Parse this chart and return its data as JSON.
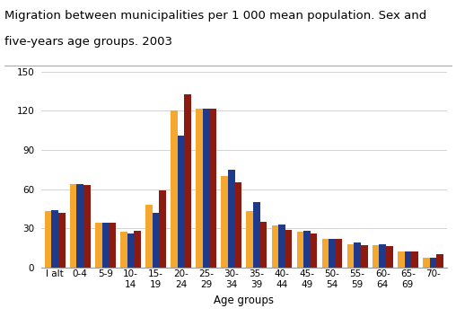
{
  "title_line1": "Migration between municipalities per 1 000 mean population. Sex and",
  "title_line2": "five-years age groups. 2003",
  "xlabel": "Age groups",
  "categories": [
    "I alt",
    "0-4",
    "5-9",
    "10-\n14",
    "15-\n19",
    "20-\n24",
    "25-\n29",
    "30-\n34",
    "35-\n39",
    "40-\n44",
    "45-\n49",
    "50-\n54",
    "55-\n59",
    "60-\n64",
    "65-\n69",
    "70-"
  ],
  "total": [
    43,
    64,
    34,
    27,
    48,
    120,
    122,
    70,
    43,
    32,
    27,
    22,
    18,
    17,
    12,
    7
  ],
  "males": [
    44,
    64,
    34,
    26,
    42,
    101,
    122,
    75,
    50,
    33,
    28,
    22,
    19,
    18,
    12,
    7
  ],
  "females": [
    42,
    63,
    34,
    28,
    59,
    133,
    122,
    65,
    35,
    29,
    26,
    22,
    17,
    16,
    12,
    10
  ],
  "color_total": "#F5A830",
  "color_males": "#1F3A8A",
  "color_females": "#8B1A10",
  "ylim": [
    0,
    150
  ],
  "yticks": [
    0,
    30,
    60,
    90,
    120,
    150
  ],
  "title_fontsize": 9.5,
  "axes_fontsize": 8.5,
  "tick_fontsize": 7.5,
  "legend_fontsize": 8.5,
  "bar_width": 0.27
}
